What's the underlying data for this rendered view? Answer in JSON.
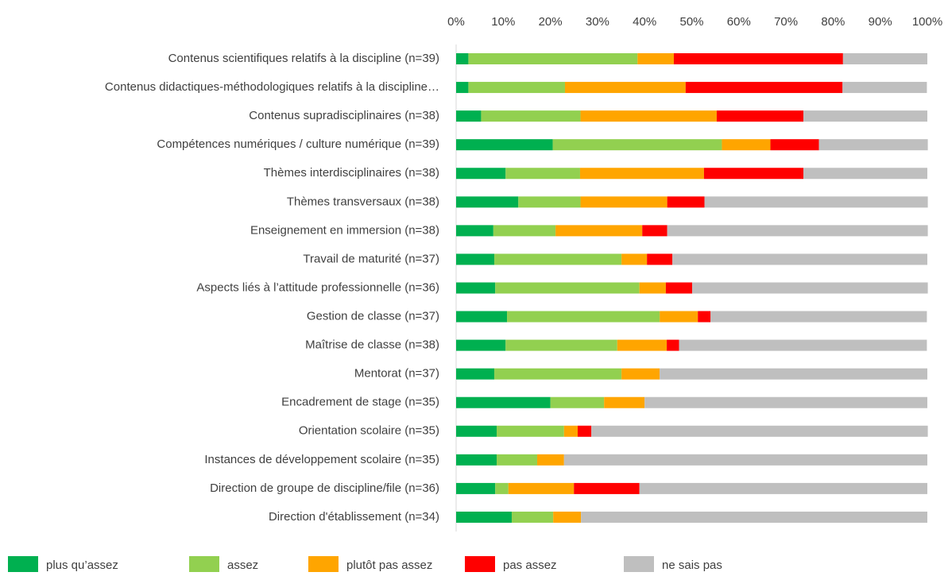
{
  "chart_data": {
    "type": "stacked-bar-horizontal",
    "categories": [
      "Contenus scientifiques relatifs à la discipline (n=39)",
      "Contenus didactiques-méthodologiques relatifs à la discipline…",
      "Contenus supradisciplinaires (n=38)",
      "Compétences numériques / culture numérique (n=39)",
      "Thèmes interdisciplinaires (n=38)",
      "Thèmes transversaux (n=38)",
      "Enseignement en immersion (n=38)",
      "Travail de maturité (n=37)",
      "Aspects liés à l’attitude professionnelle (n=36)",
      "Gestion de classe (n=37)",
      "Maîtrise de classe (n=38)",
      "Mentorat (n=37)",
      "Encadrement de stage (n=35)",
      "Orientation scolaire (n=35)",
      "Instances de développement scolaire (n=35)",
      "Direction de groupe de discipline/file (n=36)",
      "Direction d'établissement (n=34)"
    ],
    "series": [
      {
        "name": "plus qu’assez",
        "color": "#00b050",
        "values": [
          2.6,
          2.6,
          5.3,
          20.5,
          10.5,
          13.2,
          7.9,
          8.1,
          8.3,
          10.8,
          10.5,
          8.1,
          20.0,
          8.6,
          8.6,
          8.3,
          11.8
        ]
      },
      {
        "name": "assez",
        "color": "#92d050",
        "values": [
          35.9,
          20.5,
          21.1,
          35.9,
          15.8,
          13.2,
          13.2,
          27.0,
          30.6,
          32.4,
          23.7,
          27.0,
          11.4,
          14.3,
          8.6,
          2.8,
          8.8
        ]
      },
      {
        "name": "plutôt pas assez",
        "color": "#ffa500",
        "values": [
          7.7,
          25.6,
          28.9,
          10.3,
          26.3,
          18.4,
          18.4,
          5.4,
          5.6,
          8.1,
          10.5,
          8.1,
          8.6,
          2.9,
          5.7,
          13.9,
          5.9
        ]
      },
      {
        "name": "pas assez",
        "color": "#ff0000",
        "values": [
          35.9,
          33.3,
          18.4,
          10.3,
          21.1,
          7.9,
          5.3,
          5.4,
          5.6,
          2.7,
          2.6,
          0,
          0,
          2.9,
          0,
          13.9,
          0
        ]
      },
      {
        "name": "ne sais pas",
        "color": "#bfbfbf",
        "values": [
          17.9,
          17.9,
          26.3,
          23.1,
          26.3,
          47.4,
          55.3,
          54.1,
          50.0,
          45.9,
          52.6,
          56.8,
          60.0,
          71.4,
          77.1,
          61.1,
          73.5
        ]
      }
    ],
    "xlim": [
      0,
      100
    ],
    "xticks": [
      {
        "value": 0,
        "label": "0%"
      },
      {
        "value": 10,
        "label": "10%"
      },
      {
        "value": 20,
        "label": "20%"
      },
      {
        "value": 30,
        "label": "30%"
      },
      {
        "value": 40,
        "label": "40%"
      },
      {
        "value": 50,
        "label": "50%"
      },
      {
        "value": 60,
        "label": "60%"
      },
      {
        "value": 70,
        "label": "70%"
      },
      {
        "value": 80,
        "label": "80%"
      },
      {
        "value": 90,
        "label": "90%"
      },
      {
        "value": 100,
        "label": "100%"
      }
    ]
  }
}
